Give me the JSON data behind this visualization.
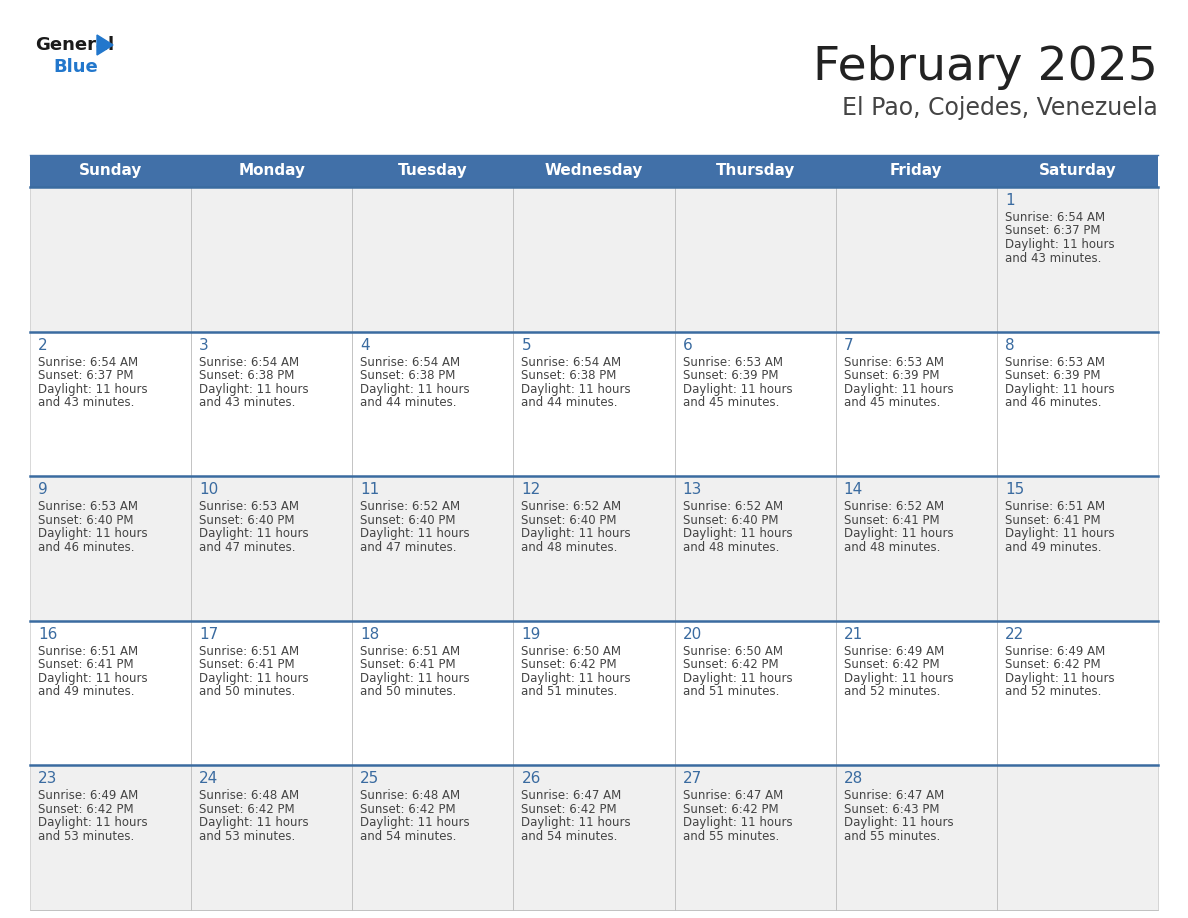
{
  "title": "February 2025",
  "subtitle": "El Pao, Cojedes, Venezuela",
  "header_bg_color": "#4170a8",
  "header_text_color": "#ffffff",
  "cell_bg_odd": "#f0f0f0",
  "cell_bg_even": "#ffffff",
  "day_headers": [
    "Sunday",
    "Monday",
    "Tuesday",
    "Wednesday",
    "Thursday",
    "Friday",
    "Saturday"
  ],
  "title_color": "#222222",
  "subtitle_color": "#444444",
  "day_number_color": "#3a6ba0",
  "text_color": "#444444",
  "divider_color": "#3a6ba0",
  "border_color": "#bbbbbb",
  "logo_general_color": "#1a1a1a",
  "logo_blue_color": "#2277cc",
  "calendar_data": [
    [
      null,
      null,
      null,
      null,
      null,
      null,
      {
        "day": 1,
        "sunrise": "6:54 AM",
        "sunset": "6:37 PM",
        "daylight": "11 hours",
        "daylight2": "and 43 minutes."
      }
    ],
    [
      {
        "day": 2,
        "sunrise": "6:54 AM",
        "sunset": "6:37 PM",
        "daylight": "11 hours",
        "daylight2": "and 43 minutes."
      },
      {
        "day": 3,
        "sunrise": "6:54 AM",
        "sunset": "6:38 PM",
        "daylight": "11 hours",
        "daylight2": "and 43 minutes."
      },
      {
        "day": 4,
        "sunrise": "6:54 AM",
        "sunset": "6:38 PM",
        "daylight": "11 hours",
        "daylight2": "and 44 minutes."
      },
      {
        "day": 5,
        "sunrise": "6:54 AM",
        "sunset": "6:38 PM",
        "daylight": "11 hours",
        "daylight2": "and 44 minutes."
      },
      {
        "day": 6,
        "sunrise": "6:53 AM",
        "sunset": "6:39 PM",
        "daylight": "11 hours",
        "daylight2": "and 45 minutes."
      },
      {
        "day": 7,
        "sunrise": "6:53 AM",
        "sunset": "6:39 PM",
        "daylight": "11 hours",
        "daylight2": "and 45 minutes."
      },
      {
        "day": 8,
        "sunrise": "6:53 AM",
        "sunset": "6:39 PM",
        "daylight": "11 hours",
        "daylight2": "and 46 minutes."
      }
    ],
    [
      {
        "day": 9,
        "sunrise": "6:53 AM",
        "sunset": "6:40 PM",
        "daylight": "11 hours",
        "daylight2": "and 46 minutes."
      },
      {
        "day": 10,
        "sunrise": "6:53 AM",
        "sunset": "6:40 PM",
        "daylight": "11 hours",
        "daylight2": "and 47 minutes."
      },
      {
        "day": 11,
        "sunrise": "6:52 AM",
        "sunset": "6:40 PM",
        "daylight": "11 hours",
        "daylight2": "and 47 minutes."
      },
      {
        "day": 12,
        "sunrise": "6:52 AM",
        "sunset": "6:40 PM",
        "daylight": "11 hours",
        "daylight2": "and 48 minutes."
      },
      {
        "day": 13,
        "sunrise": "6:52 AM",
        "sunset": "6:40 PM",
        "daylight": "11 hours",
        "daylight2": "and 48 minutes."
      },
      {
        "day": 14,
        "sunrise": "6:52 AM",
        "sunset": "6:41 PM",
        "daylight": "11 hours",
        "daylight2": "and 48 minutes."
      },
      {
        "day": 15,
        "sunrise": "6:51 AM",
        "sunset": "6:41 PM",
        "daylight": "11 hours",
        "daylight2": "and 49 minutes."
      }
    ],
    [
      {
        "day": 16,
        "sunrise": "6:51 AM",
        "sunset": "6:41 PM",
        "daylight": "11 hours",
        "daylight2": "and 49 minutes."
      },
      {
        "day": 17,
        "sunrise": "6:51 AM",
        "sunset": "6:41 PM",
        "daylight": "11 hours",
        "daylight2": "and 50 minutes."
      },
      {
        "day": 18,
        "sunrise": "6:51 AM",
        "sunset": "6:41 PM",
        "daylight": "11 hours",
        "daylight2": "and 50 minutes."
      },
      {
        "day": 19,
        "sunrise": "6:50 AM",
        "sunset": "6:42 PM",
        "daylight": "11 hours",
        "daylight2": "and 51 minutes."
      },
      {
        "day": 20,
        "sunrise": "6:50 AM",
        "sunset": "6:42 PM",
        "daylight": "11 hours",
        "daylight2": "and 51 minutes."
      },
      {
        "day": 21,
        "sunrise": "6:49 AM",
        "sunset": "6:42 PM",
        "daylight": "11 hours",
        "daylight2": "and 52 minutes."
      },
      {
        "day": 22,
        "sunrise": "6:49 AM",
        "sunset": "6:42 PM",
        "daylight": "11 hours",
        "daylight2": "and 52 minutes."
      }
    ],
    [
      {
        "day": 23,
        "sunrise": "6:49 AM",
        "sunset": "6:42 PM",
        "daylight": "11 hours",
        "daylight2": "and 53 minutes."
      },
      {
        "day": 24,
        "sunrise": "6:48 AM",
        "sunset": "6:42 PM",
        "daylight": "11 hours",
        "daylight2": "and 53 minutes."
      },
      {
        "day": 25,
        "sunrise": "6:48 AM",
        "sunset": "6:42 PM",
        "daylight": "11 hours",
        "daylight2": "and 54 minutes."
      },
      {
        "day": 26,
        "sunrise": "6:47 AM",
        "sunset": "6:42 PM",
        "daylight": "11 hours",
        "daylight2": "and 54 minutes."
      },
      {
        "day": 27,
        "sunrise": "6:47 AM",
        "sunset": "6:42 PM",
        "daylight": "11 hours",
        "daylight2": "and 55 minutes."
      },
      {
        "day": 28,
        "sunrise": "6:47 AM",
        "sunset": "6:43 PM",
        "daylight": "11 hours",
        "daylight2": "and 55 minutes."
      },
      null
    ]
  ]
}
